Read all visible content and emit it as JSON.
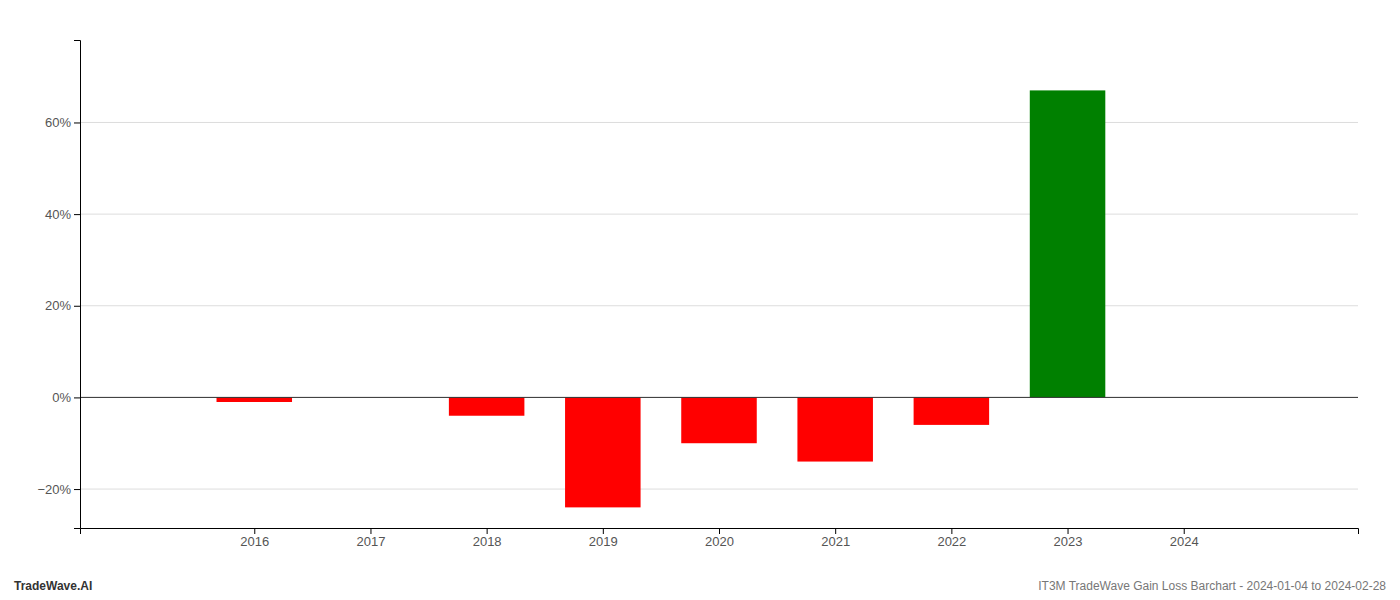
{
  "chart_data": {
    "type": "bar",
    "x": [
      2016,
      2017,
      2018,
      2019,
      2020,
      2021,
      2022,
      2023
    ],
    "values": [
      -0.01,
      0.0,
      -0.04,
      -0.24,
      -0.1,
      -0.14,
      -0.06,
      0.67
    ],
    "colors": [
      "#ff0000",
      "#ff0000",
      "#ff0000",
      "#ff0000",
      "#ff0000",
      "#ff0000",
      "#ff0000",
      "#008000"
    ],
    "xlim": [
      2014.5,
      2025.5
    ],
    "xticks": [
      2016,
      2017,
      2018,
      2019,
      2020,
      2021,
      2022,
      2023,
      2024
    ],
    "ylim": [
      -0.285,
      0.78
    ],
    "yticks": [
      {
        "value": -0.2,
        "label": "−20%"
      },
      {
        "value": 0.0,
        "label": "0%"
      },
      {
        "value": 0.2,
        "label": "20%"
      },
      {
        "value": 0.4,
        "label": "40%"
      },
      {
        "value": 0.6,
        "label": "60%"
      }
    ],
    "grid": true,
    "annotations": [
      "TradeWave.AI",
      "IT3M TradeWave Gain Loss Barchart - 2024-01-04 to 2024-02-28"
    ]
  }
}
